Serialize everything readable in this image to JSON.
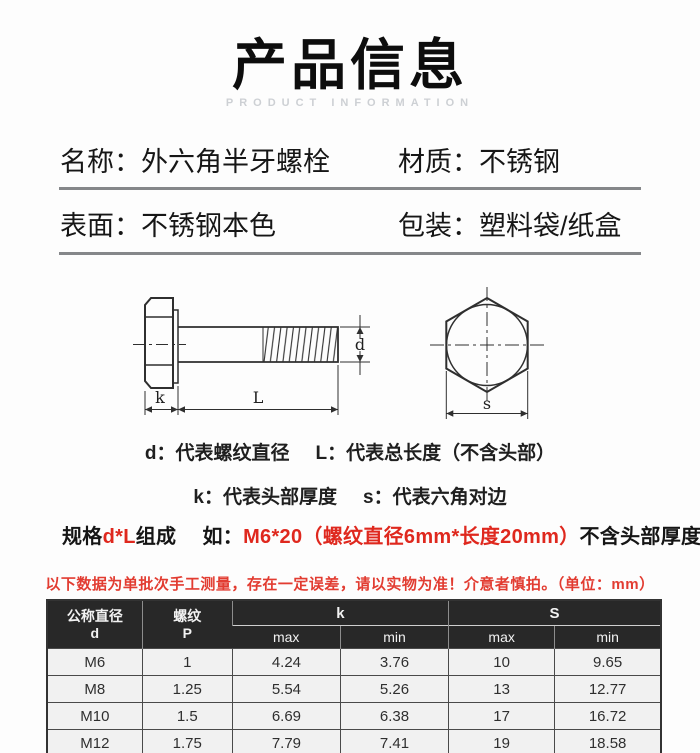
{
  "title": {
    "cn": "产品信息",
    "en": "PRODUCT INFORMATION"
  },
  "info": {
    "rows": [
      {
        "left": "名称：外六角半牙螺栓",
        "right": "材质：不锈钢"
      },
      {
        "left": "表面：不锈钢本色",
        "right": "包装：塑料袋/纸盒"
      }
    ]
  },
  "diagram": {
    "labels": {
      "d": "d",
      "k": "k",
      "L": "L",
      "s": "s"
    }
  },
  "legend": {
    "line1_left": "d：代表螺纹直径",
    "line1_right": "L：代表总长度（不含头部）",
    "line2_left": "k：代表头部厚度",
    "line2_right": "s：代表六角对边"
  },
  "spec": {
    "segments": [
      {
        "text": "规格",
        "red": false
      },
      {
        "text": "d*L",
        "red": true
      },
      {
        "text": "组成　 如：",
        "red": false
      },
      {
        "text": "M6*20（螺纹直径6mm*长度20mm）",
        "red": true
      },
      {
        "text": "不含头部厚度",
        "red": false
      }
    ]
  },
  "warning": "以下数据为单批次手工测量，存在一定误差，请以实物为准！介意者慎拍。（单位：mm）",
  "table": {
    "header": {
      "col1_line1": "公称直径",
      "col1_line2": "d",
      "col2_line1": "螺纹",
      "col2_line2": "P",
      "group1": "k",
      "group2": "S",
      "sub": [
        "max",
        "min",
        "max",
        "min"
      ]
    },
    "rows": [
      [
        "M6",
        "1",
        "4.24",
        "3.76",
        "10",
        "9.65"
      ],
      [
        "M8",
        "1.25",
        "5.54",
        "5.26",
        "13",
        "12.77"
      ],
      [
        "M10",
        "1.5",
        "6.69",
        "6.38",
        "17",
        "16.72"
      ],
      [
        "M12",
        "1.75",
        "7.79",
        "7.41",
        "19",
        "18.58"
      ]
    ]
  },
  "colors": {
    "accent-red": "#df281e",
    "warning-red": "#e23c31",
    "header-bg": "#282828",
    "row-bg": "#f1f1f1",
    "divider": "#85878a"
  }
}
